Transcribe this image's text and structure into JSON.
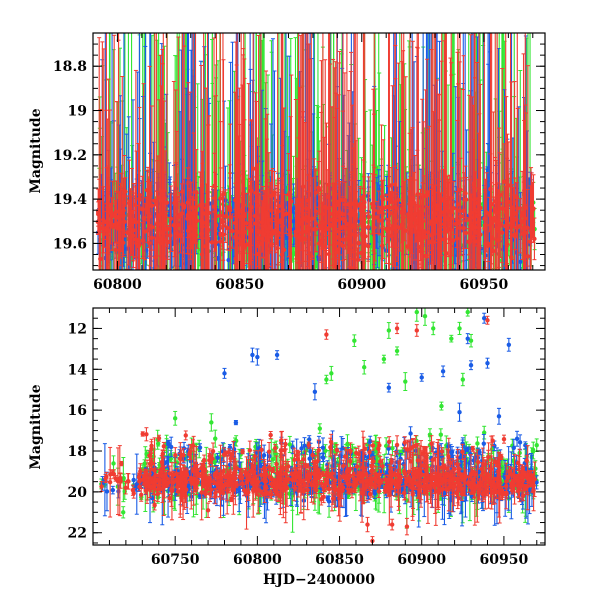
{
  "chart_data": [
    {
      "type": "scatter",
      "panel": "top",
      "title": "",
      "xlabel": "",
      "ylabel": "Magnitude",
      "xlim": [
        60790,
        60975
      ],
      "ylim": [
        19.72,
        18.65
      ],
      "y_inverted": true,
      "x_ticks": [
        60800,
        60850,
        60900,
        60950
      ],
      "y_ticks": [
        18.8,
        19,
        19.2,
        19.4,
        19.6
      ],
      "x_tick_labels": [
        "60800",
        "60850",
        "60900",
        "60950"
      ],
      "y_tick_labels": [
        "18.8",
        "19",
        "19.2",
        "19.4",
        "19.6"
      ],
      "series": [
        {
          "name": "green",
          "color": "#33e633"
        },
        {
          "name": "blue",
          "color": "#1a5ce6"
        },
        {
          "name": "red",
          "color": "#f03c32"
        }
      ],
      "note": "Dense light curve; magnitudes cluster around 19.5 with large error bars spanning the full y-range."
    },
    {
      "type": "scatter",
      "panel": "bottom",
      "title": "",
      "xlabel": "HJD−2400000",
      "ylabel": "Magnitude",
      "xlim": [
        60700,
        60975
      ],
      "ylim": [
        22.6,
        11.0
      ],
      "y_inverted": true,
      "x_ticks": [
        60750,
        60800,
        60850,
        60900,
        60950
      ],
      "y_ticks": [
        12,
        14,
        16,
        18,
        20,
        22
      ],
      "x_tick_labels": [
        "60750",
        "60800",
        "60850",
        "60900",
        "60950"
      ],
      "y_tick_labels": [
        "12",
        "14",
        "16",
        "18",
        "20",
        "22"
      ],
      "series": [
        {
          "name": "blue",
          "color": "#1a5ce6",
          "outliers": [
            [
              60780,
              14.2
            ],
            [
              60797,
              13.3
            ],
            [
              60800,
              13.4
            ],
            [
              60812,
              13.3
            ],
            [
              60835,
              15.1
            ],
            [
              60880,
              14.9
            ],
            [
              60900,
              14.4
            ],
            [
              60913,
              14.1
            ],
            [
              60928,
              12.5
            ],
            [
              60930,
              13.8
            ],
            [
              60938,
              11.5
            ],
            [
              60940,
              13.7
            ],
            [
              60947,
              16.3
            ],
            [
              60953,
              12.8
            ],
            [
              60958,
              17.4
            ],
            [
              60923,
              16.1
            ]
          ]
        },
        {
          "name": "green",
          "color": "#33e633",
          "outliers": [
            [
              60750,
              16.4
            ],
            [
              60760,
              17.8
            ],
            [
              60772,
              16.6
            ],
            [
              60842,
              14.5
            ],
            [
              60845,
              14.2
            ],
            [
              60859,
              12.6
            ],
            [
              60865,
              13.9
            ],
            [
              60877,
              13.5
            ],
            [
              60880,
              12.1
            ],
            [
              60885,
              13.1
            ],
            [
              60890,
              14.6
            ],
            [
              60897,
              11.2
            ],
            [
              60902,
              11.4
            ],
            [
              60907,
              12.0
            ],
            [
              60912,
              15.8
            ],
            [
              60918,
              12.5
            ],
            [
              60923,
              12.0
            ],
            [
              60925,
              14.5
            ],
            [
              60928,
              11.2
            ],
            [
              60930,
              12.6
            ],
            [
              60938,
              17.1
            ],
            [
              60905,
              17.2
            ],
            [
              60838,
              16.9
            ]
          ]
        },
        {
          "name": "red",
          "color": "#f03c32",
          "outliers": [
            [
              60755,
              18.2
            ],
            [
              60770,
              20.9
            ],
            [
              60842,
              12.3
            ],
            [
              60867,
              21.6
            ],
            [
              60870,
              22.4
            ],
            [
              60885,
              12.0
            ],
            [
              60882,
              21.6
            ],
            [
              60891,
              21.7
            ],
            [
              60897,
              12.1
            ],
            [
              60940,
              11.6
            ],
            [
              60885,
              17.7
            ]
          ]
        }
      ],
      "note": "Baseline near magnitude 19.5 from HJD 60705 to 60970 with scatter 19-20.5."
    }
  ]
}
